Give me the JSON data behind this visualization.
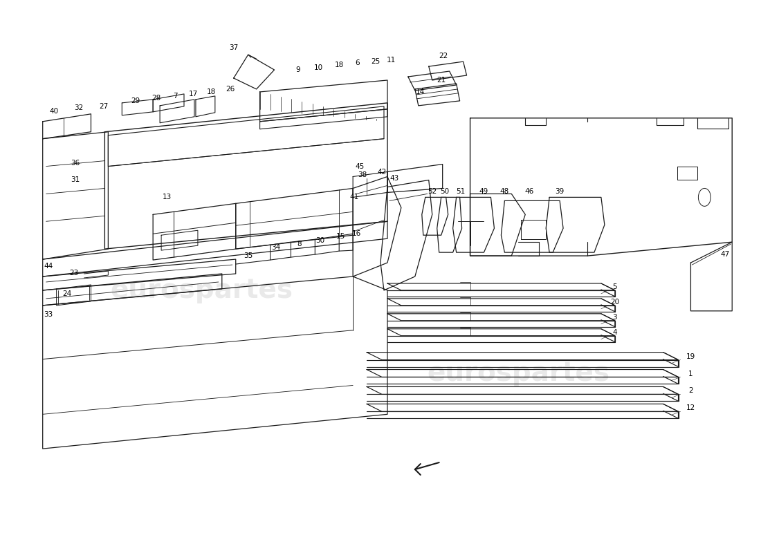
{
  "bg_color": "#ffffff",
  "line_color": "#1a1a1a",
  "fig_width": 11.0,
  "fig_height": 8.0,
  "dpi": 100
}
